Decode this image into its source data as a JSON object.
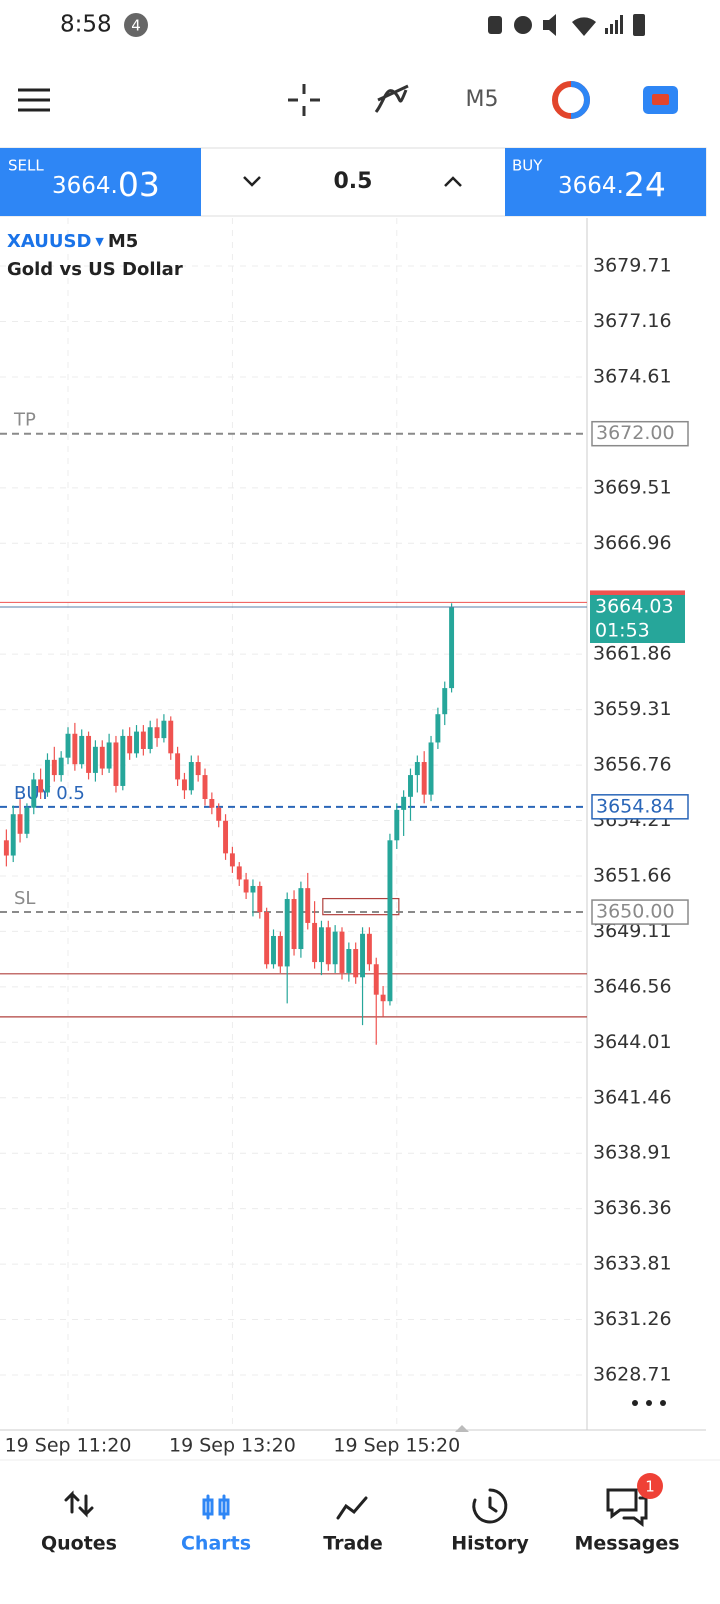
{
  "status_bar": {
    "time": "8:58",
    "notification_count": "4"
  },
  "toolbar": {
    "timeframe": "M5"
  },
  "trade_bar": {
    "sell_label": "SELL",
    "sell_price_head": "3664.",
    "sell_price_tail": "03",
    "volume": "0.5",
    "buy_label": "BUY",
    "buy_price_head": "3664.",
    "buy_price_tail": "24"
  },
  "chart": {
    "type": "candlestick",
    "symbol": "XAUUSD",
    "timeframe": "M5",
    "description": "Gold vs US Dollar",
    "up_color": "#26a69a",
    "down_color": "#ef5350",
    "grid": true,
    "xlim": [
      -0.93,
      84.77
    ],
    "ylim": [
      3626.18,
      3681.92
    ],
    "xticks": [
      {
        "value": 9,
        "label": "19 Sep 11:20"
      },
      {
        "value": 33,
        "label": "19 Sep 13:20"
      },
      {
        "value": 57,
        "label": "19 Sep 15:20"
      }
    ],
    "yticks": [
      3679.71,
      3677.16,
      3674.61,
      3669.51,
      3666.96,
      3661.86,
      3659.31,
      3656.76,
      3654.21,
      3651.66,
      3649.11,
      3646.56,
      3644.01,
      3641.46,
      3638.91,
      3636.36,
      3633.81,
      3631.26,
      3628.71
    ],
    "candles": {
      "open": [
        3653.3,
        3652.6,
        3654.5,
        3653.6,
        3654.8,
        3656.1,
        3655.5,
        3657.0,
        3656.3,
        3657.1,
        3658.2,
        3656.8,
        3658.1,
        3656.4,
        3657.6,
        3656.6,
        3657.8,
        3655.8,
        3658.1,
        3657.3,
        3658.3,
        3657.5,
        3658.5,
        3658.0,
        3658.8,
        3657.3,
        3656.1,
        3655.6,
        3656.9,
        3656.3,
        3655.2,
        3654.8,
        3654.2,
        3652.7,
        3652.1,
        3651.5,
        3650.9,
        3651.2,
        3650.0,
        3647.6,
        3648.9,
        3647.5,
        3650.6,
        3648.3,
        3651.1,
        3649.5,
        3647.7,
        3649.3,
        3647.6,
        3649.1,
        3647.2,
        3648.3,
        3647.0,
        3649.0,
        3647.6,
        3646.2,
        3645.9,
        3653.3,
        3654.7,
        3655.3,
        3656.3,
        3656.9,
        3655.4,
        3657.8,
        3659.1,
        3660.3
      ],
      "high": [
        3653.8,
        3654.9,
        3655.2,
        3655.0,
        3656.4,
        3656.6,
        3657.3,
        3657.6,
        3657.4,
        3658.5,
        3658.7,
        3658.4,
        3658.3,
        3657.9,
        3657.9,
        3658.2,
        3658.1,
        3658.4,
        3658.5,
        3658.6,
        3658.6,
        3658.8,
        3658.9,
        3659.1,
        3659.0,
        3657.6,
        3656.4,
        3657.2,
        3657.2,
        3656.6,
        3655.5,
        3655.0,
        3654.5,
        3653.0,
        3652.3,
        3651.8,
        3651.5,
        3651.4,
        3650.2,
        3649.2,
        3649.1,
        3650.9,
        3651.0,
        3651.4,
        3651.8,
        3650.5,
        3649.6,
        3649.6,
        3649.4,
        3649.3,
        3648.6,
        3648.6,
        3649.3,
        3649.3,
        3647.9,
        3646.6,
        3653.6,
        3655.0,
        3655.6,
        3656.6,
        3657.2,
        3657.4,
        3658.1,
        3659.4,
        3660.6,
        3664.2
      ],
      "low": [
        3652.1,
        3652.3,
        3653.2,
        3653.4,
        3654.5,
        3655.2,
        3655.3,
        3656.0,
        3656.0,
        3656.8,
        3656.5,
        3656.6,
        3656.1,
        3656.0,
        3656.3,
        3656.4,
        3655.5,
        3655.6,
        3657.0,
        3657.1,
        3657.2,
        3657.3,
        3657.6,
        3657.8,
        3657.0,
        3655.8,
        3655.2,
        3655.4,
        3656.0,
        3654.9,
        3654.5,
        3653.9,
        3652.4,
        3651.8,
        3651.2,
        3650.6,
        3649.8,
        3649.7,
        3647.4,
        3647.4,
        3647.2,
        3645.8,
        3648.0,
        3647.9,
        3649.2,
        3647.4,
        3647.1,
        3647.3,
        3647.2,
        3646.9,
        3646.8,
        3646.7,
        3644.8,
        3647.3,
        3643.9,
        3645.2,
        3645.7,
        3652.9,
        3653.5,
        3654.2,
        3655.5,
        3655.0,
        3655.1,
        3657.5,
        3658.6,
        3660.1
      ],
      "close": [
        3652.6,
        3654.5,
        3653.6,
        3654.8,
        3656.1,
        3655.5,
        3657.0,
        3656.3,
        3657.1,
        3658.2,
        3656.8,
        3658.1,
        3656.4,
        3657.6,
        3656.6,
        3657.8,
        3655.8,
        3658.1,
        3657.3,
        3658.3,
        3657.5,
        3658.5,
        3658.0,
        3658.8,
        3657.3,
        3656.1,
        3655.6,
        3656.9,
        3656.3,
        3655.2,
        3654.8,
        3654.2,
        3652.7,
        3652.1,
        3651.5,
        3650.9,
        3651.2,
        3650.0,
        3647.6,
        3648.9,
        3647.5,
        3650.6,
        3648.3,
        3651.1,
        3649.5,
        3647.7,
        3649.3,
        3647.6,
        3649.1,
        3647.2,
        3648.3,
        3647.0,
        3649.0,
        3647.6,
        3646.2,
        3645.9,
        3653.3,
        3654.7,
        3655.3,
        3656.3,
        3656.9,
        3655.4,
        3657.8,
        3659.1,
        3660.3,
        3664.03
      ]
    },
    "bid": 3664.03,
    "ask": 3664.24,
    "countdown": "01:53",
    "levels": [
      {
        "name": "TP",
        "price": {
          "value": 3672,
          "label": "3672.00"
        },
        "color": "#8a8a8a"
      },
      {
        "name": "BUY 0.5",
        "price": 3654.84,
        "color": "#2a66b8"
      },
      {
        "name": "SL",
        "price": {
          "value": 3650,
          "label": "3650.00"
        },
        "color": "#8a8a8a"
      }
    ],
    "hlines": {
      "values": [
        3647.16,
        3645.18
      ],
      "color": "#b0413e"
    },
    "rectangle": {
      "x": [
        46.2,
        57.3
      ],
      "y": [
        3649.88,
        3650.62
      ],
      "color": "#b0413e"
    }
  },
  "nav": {
    "items": [
      {
        "label": "Quotes"
      },
      {
        "label": "Charts",
        "active": true
      },
      {
        "label": "Trade"
      },
      {
        "label": "History"
      },
      {
        "label": "Messages"
      }
    ],
    "messages_badge": "1"
  }
}
